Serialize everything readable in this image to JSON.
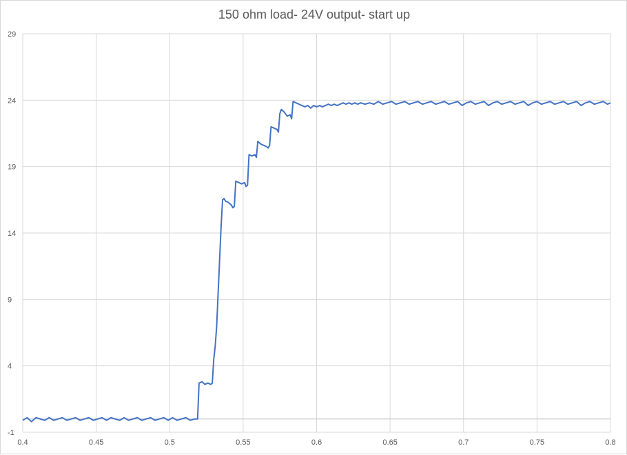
{
  "chart_data": {
    "type": "line",
    "title": "150 ohm load- 24V output- start up",
    "xlabel": "",
    "ylabel": "",
    "xlim": [
      0.4,
      0.8
    ],
    "ylim": [
      -1,
      29
    ],
    "x_ticks": [
      0.4,
      0.45,
      0.5,
      0.55,
      0.6,
      0.65,
      0.7,
      0.75,
      0.8
    ],
    "x_tick_labels": [
      "0.4",
      "0.45",
      "0.5",
      "0.55",
      "0.6",
      "0.65",
      "0.7",
      "0.75",
      "0.8"
    ],
    "y_ticks": [
      -1,
      4,
      9,
      14,
      19,
      24,
      29
    ],
    "y_tick_labels": [
      "-1",
      "4",
      "9",
      "14",
      "19",
      "24",
      "29"
    ],
    "grid": true,
    "legend": "none",
    "colors": {
      "series": "#4472c4",
      "grid": "#d9d9d9",
      "zero_line": "#bfbfbf",
      "text": "#595959"
    },
    "series": [
      {
        "points": [
          [
            0.4,
            -0.1
          ],
          [
            0.403,
            0.1
          ],
          [
            0.406,
            -0.2
          ],
          [
            0.409,
            0.1
          ],
          [
            0.412,
            0.0
          ],
          [
            0.415,
            -0.1
          ],
          [
            0.418,
            0.1
          ],
          [
            0.421,
            -0.1
          ],
          [
            0.424,
            0.0
          ],
          [
            0.427,
            0.1
          ],
          [
            0.43,
            -0.1
          ],
          [
            0.433,
            0.0
          ],
          [
            0.436,
            0.1
          ],
          [
            0.439,
            -0.1
          ],
          [
            0.442,
            0.0
          ],
          [
            0.445,
            0.1
          ],
          [
            0.448,
            -0.1
          ],
          [
            0.451,
            0.0
          ],
          [
            0.454,
            0.1
          ],
          [
            0.457,
            -0.1
          ],
          [
            0.46,
            0.1
          ],
          [
            0.463,
            0.0
          ],
          [
            0.466,
            -0.1
          ],
          [
            0.469,
            0.1
          ],
          [
            0.472,
            -0.1
          ],
          [
            0.475,
            0.0
          ],
          [
            0.478,
            0.1
          ],
          [
            0.481,
            -0.1
          ],
          [
            0.484,
            0.0
          ],
          [
            0.487,
            0.1
          ],
          [
            0.49,
            -0.1
          ],
          [
            0.493,
            0.0
          ],
          [
            0.496,
            0.1
          ],
          [
            0.499,
            -0.1
          ],
          [
            0.502,
            0.1
          ],
          [
            0.505,
            -0.1
          ],
          [
            0.508,
            0.0
          ],
          [
            0.511,
            0.1
          ],
          [
            0.514,
            -0.1
          ],
          [
            0.517,
            0.0
          ],
          [
            0.519,
            0.0
          ],
          [
            0.52,
            2.7
          ],
          [
            0.522,
            2.8
          ],
          [
            0.524,
            2.6
          ],
          [
            0.526,
            2.7
          ],
          [
            0.528,
            2.6
          ],
          [
            0.529,
            2.7
          ],
          [
            0.53,
            4.5
          ],
          [
            0.531,
            5.5
          ],
          [
            0.532,
            7.0
          ],
          [
            0.533,
            9.5
          ],
          [
            0.534,
            12.0
          ],
          [
            0.535,
            14.5
          ],
          [
            0.536,
            16.5
          ],
          [
            0.537,
            16.6
          ],
          [
            0.538,
            16.4
          ],
          [
            0.54,
            16.3
          ],
          [
            0.542,
            16.1
          ],
          [
            0.543,
            15.9
          ],
          [
            0.544,
            16.0
          ],
          [
            0.545,
            17.9
          ],
          [
            0.547,
            17.8
          ],
          [
            0.549,
            17.7
          ],
          [
            0.551,
            17.8
          ],
          [
            0.552,
            17.5
          ],
          [
            0.553,
            17.6
          ],
          [
            0.554,
            19.9
          ],
          [
            0.556,
            19.8
          ],
          [
            0.558,
            19.9
          ],
          [
            0.559,
            19.7
          ],
          [
            0.56,
            20.9
          ],
          [
            0.562,
            20.7
          ],
          [
            0.564,
            20.6
          ],
          [
            0.566,
            20.5
          ],
          [
            0.567,
            20.4
          ],
          [
            0.568,
            20.6
          ],
          [
            0.569,
            22.0
          ],
          [
            0.571,
            21.9
          ],
          [
            0.573,
            21.8
          ],
          [
            0.574,
            21.6
          ],
          [
            0.575,
            23.0
          ],
          [
            0.576,
            23.3
          ],
          [
            0.578,
            23.1
          ],
          [
            0.58,
            22.8
          ],
          [
            0.582,
            22.9
          ],
          [
            0.583,
            22.6
          ],
          [
            0.584,
            23.9
          ],
          [
            0.586,
            23.8
          ],
          [
            0.588,
            23.7
          ],
          [
            0.59,
            23.6
          ],
          [
            0.592,
            23.5
          ],
          [
            0.594,
            23.6
          ],
          [
            0.596,
            23.4
          ],
          [
            0.598,
            23.6
          ],
          [
            0.6,
            23.5
          ],
          [
            0.602,
            23.6
          ],
          [
            0.604,
            23.5
          ],
          [
            0.606,
            23.6
          ],
          [
            0.608,
            23.7
          ],
          [
            0.61,
            23.6
          ],
          [
            0.612,
            23.7
          ],
          [
            0.614,
            23.6
          ],
          [
            0.616,
            23.7
          ],
          [
            0.618,
            23.8
          ],
          [
            0.62,
            23.7
          ],
          [
            0.622,
            23.8
          ],
          [
            0.624,
            23.7
          ],
          [
            0.626,
            23.8
          ],
          [
            0.628,
            23.7
          ],
          [
            0.63,
            23.8
          ],
          [
            0.633,
            23.7
          ],
          [
            0.636,
            23.8
          ],
          [
            0.639,
            23.7
          ],
          [
            0.642,
            23.9
          ],
          [
            0.645,
            23.7
          ],
          [
            0.648,
            23.8
          ],
          [
            0.651,
            23.9
          ],
          [
            0.654,
            23.7
          ],
          [
            0.657,
            23.8
          ],
          [
            0.66,
            23.9
          ],
          [
            0.663,
            23.7
          ],
          [
            0.666,
            23.8
          ],
          [
            0.669,
            23.9
          ],
          [
            0.672,
            23.7
          ],
          [
            0.675,
            23.8
          ],
          [
            0.678,
            23.9
          ],
          [
            0.681,
            23.7
          ],
          [
            0.684,
            23.8
          ],
          [
            0.687,
            23.9
          ],
          [
            0.69,
            23.7
          ],
          [
            0.693,
            23.8
          ],
          [
            0.696,
            23.9
          ],
          [
            0.699,
            23.6
          ],
          [
            0.702,
            23.8
          ],
          [
            0.705,
            23.9
          ],
          [
            0.708,
            23.7
          ],
          [
            0.711,
            23.8
          ],
          [
            0.714,
            23.9
          ],
          [
            0.717,
            23.6
          ],
          [
            0.72,
            23.8
          ],
          [
            0.723,
            23.9
          ],
          [
            0.726,
            23.7
          ],
          [
            0.729,
            23.8
          ],
          [
            0.732,
            23.9
          ],
          [
            0.735,
            23.7
          ],
          [
            0.738,
            23.8
          ],
          [
            0.741,
            23.9
          ],
          [
            0.744,
            23.6
          ],
          [
            0.747,
            23.8
          ],
          [
            0.75,
            23.9
          ],
          [
            0.753,
            23.7
          ],
          [
            0.756,
            23.8
          ],
          [
            0.759,
            23.9
          ],
          [
            0.762,
            23.7
          ],
          [
            0.765,
            23.8
          ],
          [
            0.768,
            23.9
          ],
          [
            0.771,
            23.7
          ],
          [
            0.774,
            23.8
          ],
          [
            0.777,
            23.9
          ],
          [
            0.78,
            23.6
          ],
          [
            0.783,
            23.8
          ],
          [
            0.786,
            23.9
          ],
          [
            0.789,
            23.7
          ],
          [
            0.792,
            23.8
          ],
          [
            0.795,
            23.9
          ],
          [
            0.798,
            23.7
          ],
          [
            0.8,
            23.8
          ]
        ]
      }
    ]
  }
}
